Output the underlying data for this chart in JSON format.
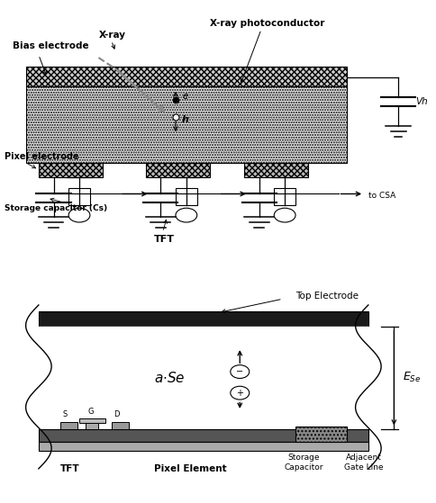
{
  "top": {
    "bias_electrode_label": "Bias electrode",
    "xray_label": "X-ray",
    "photoconductor_label": "X-ray photoconductor",
    "pixel_electrode_label": "Pixel electrode",
    "storage_cap_label": "Storage capacitor (Cs)",
    "tft_label": "TFT",
    "to_csa_label": "to CSA",
    "vh_label": "Vh",
    "e_label": "e",
    "h_label": "h"
  },
  "bottom": {
    "top_electrode_label": "Top Electrode",
    "ase_label": "a·Se",
    "ese_label": "$E_{Se}$",
    "tft_label": "TFT",
    "pixel_element_label": "Pixel Element",
    "storage_cap_label": "Storage\nCapacitor",
    "adjacent_gate_label": "Adjacent\nGate Line",
    "s_label": "S",
    "g_label": "G",
    "d_label": "D"
  }
}
